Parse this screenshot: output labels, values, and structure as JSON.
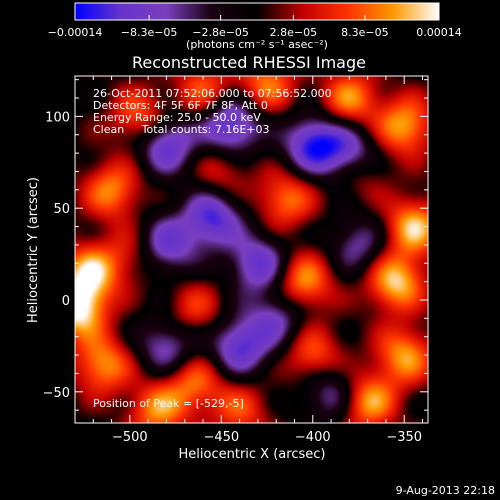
{
  "chart_data": {
    "type": "heatmap",
    "title": "Reconstructed RHESSI Image",
    "xlabel": "Heliocentric X (arcsec)",
    "ylabel": "Heliocentric Y (arcsec)",
    "xlim": [
      -530,
      -337
    ],
    "ylim": [
      -67,
      122
    ],
    "xticks": [
      -500,
      -450,
      -400,
      -350
    ],
    "xtick_labels": [
      "−500",
      "−450",
      "−400",
      "−350"
    ],
    "yticks": [
      -50,
      0,
      50,
      100
    ],
    "ytick_labels": [
      "−50",
      "0",
      "50",
      "100"
    ],
    "colorbar": {
      "label": "(photons cm⁻² s⁻¹ asec⁻²)",
      "range": [
        -0.00014,
        0.00014
      ],
      "ticks": [
        -0.00014,
        -8.3e-05,
        -2.8e-05,
        2.8e-05,
        8.3e-05,
        0.00014
      ],
      "tick_labels": [
        "−0.00014",
        "−8.3e−05",
        "−2.8e−05",
        "2.8e−05",
        "8.3e−05",
        "0.00014"
      ],
      "colors": [
        "#0000ff",
        "#6633cc",
        "#7a3fbf",
        "#1a0010",
        "#000000",
        "#c00000",
        "#ff3300",
        "#ff9900",
        "#ffffff"
      ]
    },
    "annotations": [
      "26-Oct-2011 07:52:06.000 to 07:56:52.000",
      "Detectors: 4F 5F 6F 7F 8F, Att 0",
      "Energy Range: 25.0 - 50.0 keV",
      "Clean     Total counts: 7.16E+03",
      "Position of Peak = [-529,-5]"
    ],
    "sources": [
      {
        "x": -529,
        "y": -5,
        "amp": 1.0
      },
      {
        "x": -522,
        "y": 15,
        "amp": 0.85
      },
      {
        "x": -515,
        "y": -35,
        "amp": 0.75
      },
      {
        "x": -510,
        "y": 60,
        "amp": 0.7
      },
      {
        "x": -495,
        "y": 100,
        "amp": 0.6
      },
      {
        "x": -460,
        "y": 115,
        "amp": 0.55
      },
      {
        "x": -425,
        "y": 118,
        "amp": 0.65
      },
      {
        "x": -380,
        "y": 110,
        "amp": 0.7
      },
      {
        "x": -350,
        "y": 95,
        "amp": 0.8
      },
      {
        "x": -345,
        "y": 40,
        "amp": 0.85
      },
      {
        "x": -355,
        "y": 10,
        "amp": 0.9
      },
      {
        "x": -350,
        "y": -30,
        "amp": 0.75
      },
      {
        "x": -370,
        "y": -55,
        "amp": 0.8
      },
      {
        "x": -400,
        "y": -30,
        "amp": 0.6
      },
      {
        "x": -405,
        "y": 10,
        "amp": 0.75
      },
      {
        "x": -415,
        "y": 55,
        "amp": 0.65
      },
      {
        "x": -450,
        "y": 70,
        "amp": 0.4
      },
      {
        "x": -465,
        "y": -5,
        "amp": 0.45
      },
      {
        "x": -465,
        "y": -45,
        "amp": 0.6
      },
      {
        "x": -485,
        "y": -60,
        "amp": 0.7
      },
      {
        "x": -440,
        "y": -60,
        "amp": 0.5
      },
      {
        "x": -500,
        "y": 25,
        "amp": 0.35
      },
      {
        "x": -375,
        "y": 70,
        "amp": 0.4
      },
      {
        "x": -445,
        "y": 95,
        "amp": -0.9
      },
      {
        "x": -480,
        "y": 85,
        "amp": -0.8
      },
      {
        "x": -400,
        "y": 85,
        "amp": -0.9
      },
      {
        "x": -380,
        "y": 80,
        "amp": -0.75
      },
      {
        "x": -455,
        "y": 45,
        "amp": -0.85
      },
      {
        "x": -480,
        "y": 30,
        "amp": -0.7
      },
      {
        "x": -430,
        "y": 20,
        "amp": -0.75
      },
      {
        "x": -480,
        "y": -25,
        "amp": -0.6
      },
      {
        "x": -440,
        "y": -25,
        "amp": -0.8
      },
      {
        "x": -390,
        "y": -50,
        "amp": -0.55
      },
      {
        "x": -420,
        "y": -10,
        "amp": -0.55
      },
      {
        "x": -375,
        "y": 30,
        "amp": -0.5
      }
    ]
  },
  "footer": {
    "timestamp": "9-Aug-2013 22:18"
  }
}
